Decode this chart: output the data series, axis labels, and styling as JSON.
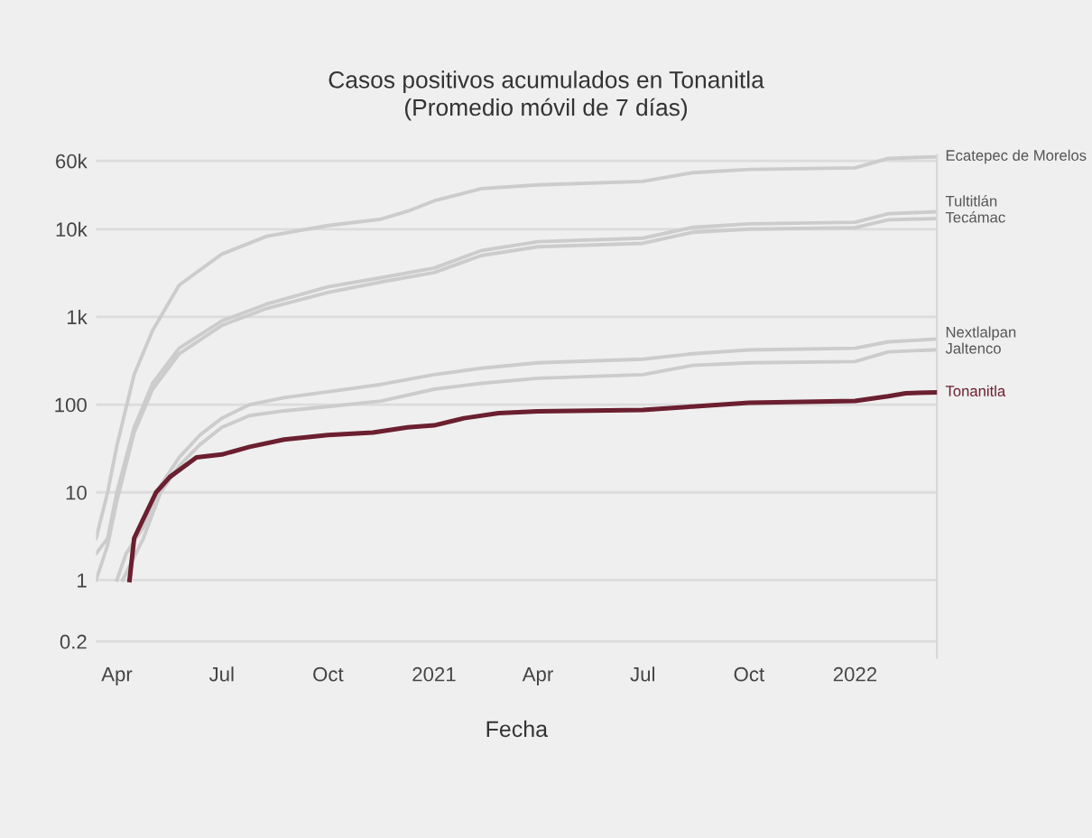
{
  "chart_data": {
    "type": "line",
    "title": "Casos positivos acumulados en Tonanitla",
    "subtitle": "(Promedio móvil de 7 días)",
    "xlabel": "Fecha",
    "log": "y",
    "grid": "y",
    "legend": false,
    "marker": "none",
    "line_style": "solid",
    "xlim": [
      "2020-03-14",
      "2022-03-13"
    ],
    "ylim": [
      0.13,
      70000
    ],
    "xticks": [
      {
        "value": "2020-04-01",
        "label": "Apr"
      },
      {
        "value": "2020-07-01",
        "label": "Jul"
      },
      {
        "value": "2020-10-01",
        "label": "Oct"
      },
      {
        "value": "2021-01-01",
        "label": "2021"
      },
      {
        "value": "2021-04-01",
        "label": "Apr"
      },
      {
        "value": "2021-07-01",
        "label": "Jul"
      },
      {
        "value": "2021-10-01",
        "label": "Oct"
      },
      {
        "value": "2022-01-01",
        "label": "2022"
      }
    ],
    "yticks": [
      0.2,
      1,
      10,
      100,
      {
        "value": 1000,
        "label": "1k"
      },
      {
        "value": 10000,
        "label": "10k"
      },
      {
        "value": 60000,
        "label": "60k"
      }
    ],
    "series": [
      {
        "name": "Ecatepec de Morelos",
        "color": "#cccccc",
        "x": [
          "2020-03-14",
          "2020-03-24",
          "2020-04-01",
          "2020-04-16",
          "2020-05-02",
          "2020-05-25",
          "2020-07-01",
          "2020-08-09",
          "2020-10-01",
          "2020-11-16",
          "2020-12-09",
          "2021-01-01",
          "2021-02-11",
          "2021-04-01",
          "2021-07-01",
          "2021-08-13",
          "2021-10-01",
          "2022-01-01",
          "2022-01-30",
          "2022-03-13"
        ],
        "values": [
          3,
          10,
          34,
          220,
          700,
          2300,
          5200,
          8300,
          11000,
          13000,
          16000,
          21000,
          29000,
          32000,
          35000,
          44000,
          48000,
          50000,
          64000,
          67000
        ]
      },
      {
        "name": "Tultitlán",
        "color": "#cccccc",
        "x": [
          "2020-03-14",
          "2020-03-24",
          "2020-04-01",
          "2020-04-16",
          "2020-05-02",
          "2020-05-25",
          "2020-07-01",
          "2020-08-09",
          "2020-10-01",
          "2020-11-16",
          "2021-01-01",
          "2021-02-11",
          "2021-04-01",
          "2021-07-01",
          "2021-08-13",
          "2021-10-01",
          "2022-01-01",
          "2022-01-30",
          "2022-03-13"
        ],
        "values": [
          2,
          3,
          10,
          55,
          175,
          440,
          900,
          1400,
          2200,
          2800,
          3600,
          5700,
          7200,
          7900,
          10500,
          11500,
          12000,
          15000,
          15800
        ]
      },
      {
        "name": "Tecámac",
        "color": "#cccccc",
        "x": [
          "2020-03-14",
          "2020-03-24",
          "2020-04-01",
          "2020-04-16",
          "2020-05-02",
          "2020-05-25",
          "2020-07-01",
          "2020-08-09",
          "2020-10-01",
          "2020-11-16",
          "2021-01-01",
          "2021-02-11",
          "2021-04-01",
          "2021-07-01",
          "2021-08-13",
          "2021-10-01",
          "2022-01-01",
          "2022-01-30",
          "2022-03-13"
        ],
        "values": [
          1,
          2.5,
          8,
          48,
          150,
          380,
          800,
          1250,
          1900,
          2500,
          3200,
          5000,
          6300,
          6900,
          9200,
          10000,
          10400,
          12800,
          13200
        ]
      },
      {
        "name": "Nextlalpan",
        "color": "#cccccc",
        "x": [
          "2020-04-01",
          "2020-04-09",
          "2020-04-24",
          "2020-05-09",
          "2020-05-25",
          "2020-06-12",
          "2020-07-01",
          "2020-07-25",
          "2020-08-24",
          "2020-10-01",
          "2020-11-16",
          "2021-01-01",
          "2021-02-11",
          "2021-04-01",
          "2021-07-01",
          "2021-08-13",
          "2021-10-01",
          "2022-01-01",
          "2022-01-30",
          "2022-03-13"
        ],
        "values": [
          1,
          2,
          4,
          12,
          25,
          45,
          70,
          100,
          120,
          140,
          170,
          220,
          260,
          300,
          330,
          380,
          420,
          440,
          520,
          560
        ]
      },
      {
        "name": "Jaltenco",
        "color": "#cccccc",
        "x": [
          "2020-04-06",
          "2020-04-24",
          "2020-05-09",
          "2020-05-25",
          "2020-06-12",
          "2020-07-01",
          "2020-07-25",
          "2020-08-24",
          "2020-10-01",
          "2020-11-16",
          "2021-01-01",
          "2021-02-11",
          "2021-04-01",
          "2021-07-01",
          "2021-08-13",
          "2021-10-01",
          "2022-01-01",
          "2022-01-30",
          "2022-03-13"
        ],
        "values": [
          1,
          3,
          10,
          20,
          35,
          55,
          75,
          85,
          95,
          110,
          150,
          175,
          200,
          220,
          280,
          300,
          310,
          400,
          423
        ]
      },
      {
        "name": "Tonanitla",
        "color": "#6b1f2f",
        "x": [
          "2020-04-12",
          "2020-04-16",
          "2020-04-24",
          "2020-05-05",
          "2020-05-17",
          "2020-06-09",
          "2020-07-01",
          "2020-07-25",
          "2020-08-24",
          "2020-10-01",
          "2020-11-09",
          "2020-12-09",
          "2021-01-01",
          "2021-01-27",
          "2021-02-26",
          "2021-04-01",
          "2021-07-01",
          "2021-08-13",
          "2021-10-01",
          "2022-01-01",
          "2022-01-30",
          "2022-02-14",
          "2022-03-13"
        ],
        "values": [
          1,
          3,
          5,
          10,
          15,
          25,
          27,
          33,
          40,
          45,
          48,
          55,
          58,
          70,
          80,
          84,
          87,
          95,
          105,
          110,
          125,
          135,
          138
        ]
      }
    ]
  }
}
